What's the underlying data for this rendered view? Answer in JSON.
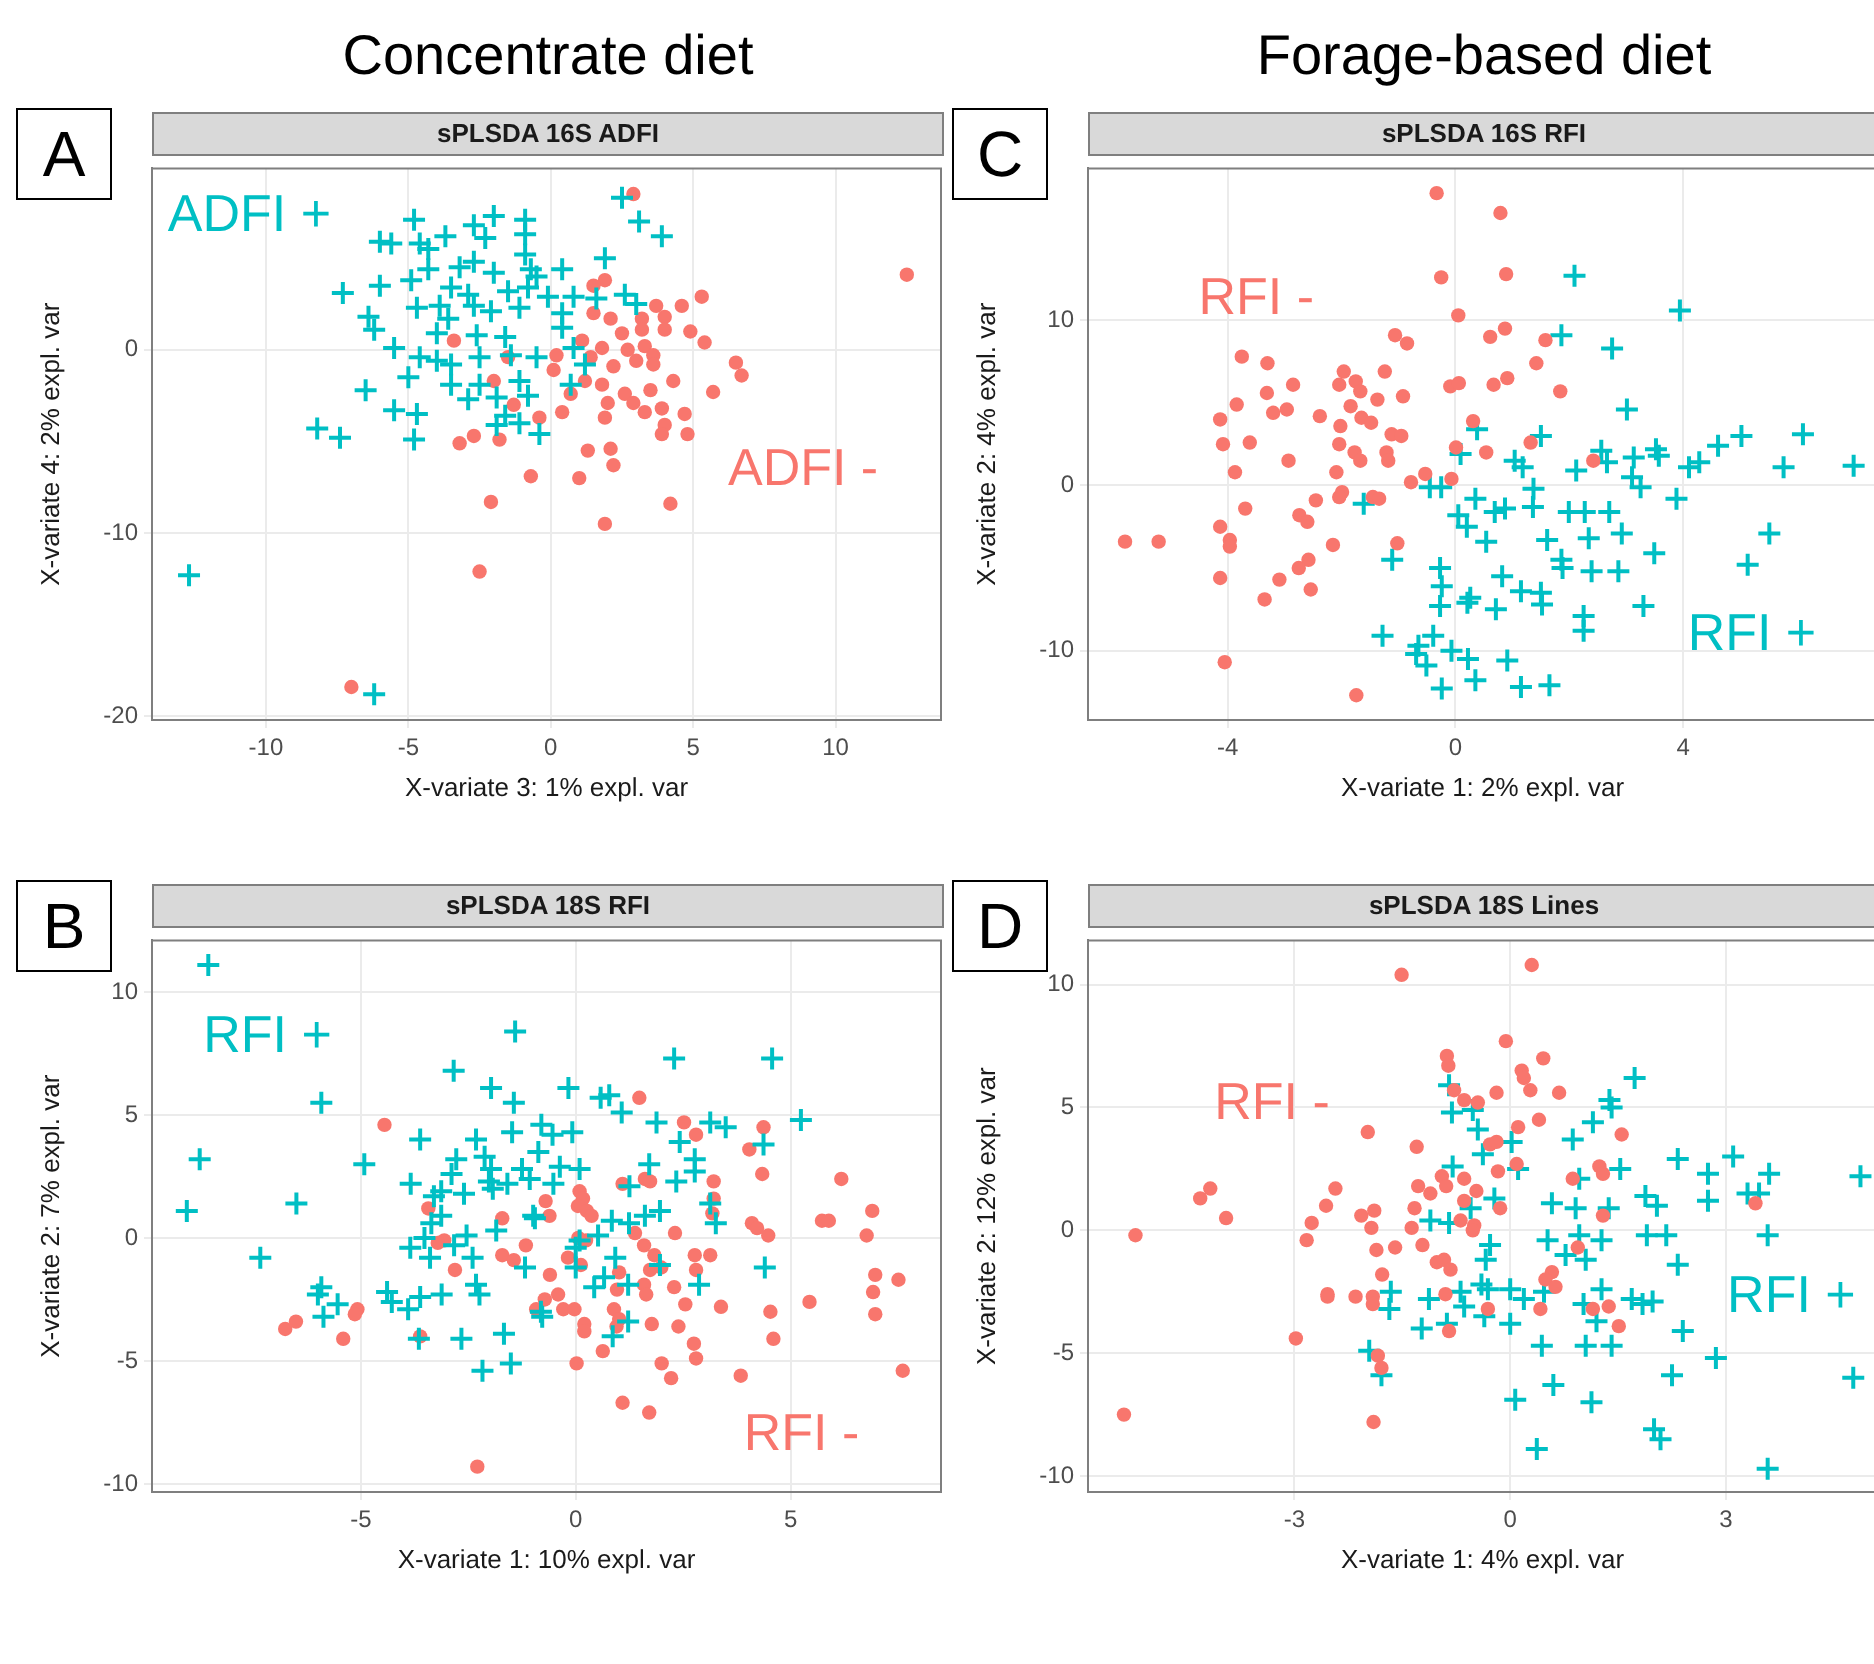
{
  "chart_data": [
    {
      "type": "scatter",
      "subtitle": "Concentrate diet",
      "title": "sPLSDA 16S ADFI",
      "annotations": [
        "A"
      ],
      "xlabel": "X-variate 3: 1% expl. var",
      "ylabel": "X-variate 4: 2% expl. var",
      "xlim": [
        -14,
        13.7
      ],
      "ylim": [
        -20.2,
        9.9
      ],
      "xticks": [
        -10,
        -5,
        0,
        5,
        10
      ],
      "yticks": [
        -20,
        -10,
        0
      ],
      "grid": true,
      "series": [
        {
          "name": "ADFI +",
          "color": "#00bfc4",
          "marker": "cross",
          "x": [
            2.5,
            3.1,
            3.9,
            -4.8,
            -2.7,
            -2.0,
            -0.9,
            -0.9,
            -6.0,
            -5.6,
            -4.6,
            -4.3,
            -3.7,
            -2.3,
            -0.9,
            1.9,
            -4.3,
            -3.2,
            -2.7,
            -2.0,
            -0.7,
            -0.5,
            0.4,
            -4.9,
            -6.0,
            -7.3,
            -3.5,
            -2.9,
            -1.5,
            -0.8,
            -0.1,
            0.8,
            1.6,
            2.6,
            3.0,
            -4.7,
            -3.9,
            -2.7,
            -2.1,
            -1.1,
            0.4,
            -6.4,
            -6.2,
            -3.6,
            -4.0,
            -2.6,
            -1.6,
            0.4,
            -5.5,
            -4.6,
            -4.0,
            -3.5,
            -2.5,
            -1.4,
            -0.5,
            0.8,
            1.2,
            -5.0,
            -3.5,
            -2.5,
            -1.1,
            0.7,
            -6.5,
            -2.9,
            -1.9,
            -0.8,
            -5.5,
            -4.7,
            -1.6,
            -1.9,
            -1.1,
            -0.4,
            -8.2,
            -7.4,
            -4.8,
            -12.7,
            -6.2
          ],
          "values": [
            8.3,
            7.0,
            6.2,
            7.1,
            6.8,
            7.3,
            7.1,
            6.3,
            5.9,
            5.8,
            5.8,
            5.5,
            6.2,
            6.1,
            5.2,
            5.0,
            4.4,
            4.5,
            4.8,
            4.2,
            4.4,
            4.0,
            4.4,
            3.8,
            3.5,
            3.1,
            3.4,
            3.0,
            3.2,
            3.4,
            2.9,
            2.9,
            2.8,
            3.0,
            2.5,
            2.3,
            2.4,
            2.4,
            2.1,
            2.3,
            2.0,
            1.8,
            1.1,
            1.7,
            0.9,
            0.8,
            0.7,
            1.2,
            0.1,
            -0.4,
            -0.6,
            -0.8,
            -0.4,
            -0.3,
            -0.4,
            0.1,
            -0.8,
            -1.5,
            -1.9,
            -1.9,
            -1.7,
            -1.9,
            -2.2,
            -2.7,
            -2.6,
            -2.5,
            -3.3,
            -3.5,
            -3.6,
            -4.1,
            -4.0,
            -4.6,
            -4.3,
            -4.8,
            -4.9,
            -12.3,
            -18.8
          ]
        },
        {
          "name": "ADFI -",
          "color": "#f8766d",
          "marker": "circle",
          "x": [
            2.9,
            12.5,
            1.9,
            1.5,
            5.3,
            3.7,
            4.6,
            2.1,
            3.2,
            4.0,
            1.5,
            2.5,
            3.2,
            4.0,
            4.9,
            5.4,
            -3.4,
            1.1,
            1.8,
            2.7,
            3.3,
            3.6,
            3.0,
            2.2,
            1.4,
            0.2,
            -1.5,
            6.5,
            6.7,
            3.6,
            1.8,
            1.2,
            0.1,
            0.7,
            2.6,
            3.5,
            4.3,
            5.7,
            2.0,
            2.9,
            3.3,
            3.9,
            4.7,
            -2.0,
            -1.3,
            -0.4,
            0.4,
            1.9,
            4.0,
            4.8,
            3.9,
            -3.2,
            -2.7,
            -1.8,
            1.3,
            2.1,
            2.2,
            -0.7,
            1.0,
            -2.1,
            4.2,
            1.9,
            -2.5,
            -7.0
          ],
          "values": [
            8.5,
            4.1,
            3.8,
            3.5,
            2.9,
            2.4,
            2.4,
            1.7,
            1.7,
            1.8,
            2.0,
            0.9,
            1.1,
            1.1,
            1.0,
            0.4,
            0.5,
            0.5,
            0.1,
            0.0,
            0.2,
            -0.3,
            -0.6,
            -0.9,
            -0.4,
            -0.3,
            -0.4,
            -0.7,
            -1.4,
            -0.8,
            -1.9,
            -1.7,
            -1.1,
            -2.4,
            -2.4,
            -2.2,
            -1.7,
            -2.3,
            -2.9,
            -2.9,
            -3.4,
            -3.2,
            -3.5,
            -1.7,
            -3.0,
            -3.7,
            -3.4,
            -3.7,
            -4.1,
            -4.6,
            -4.6,
            -5.1,
            -4.7,
            -4.9,
            -5.5,
            -5.4,
            -6.3,
            -6.9,
            -7.0,
            -8.3,
            -8.4,
            -9.5,
            -12.1,
            -18.4
          ]
        }
      ]
    },
    {
      "type": "scatter",
      "subtitle": "Forage-based diet",
      "title": "sPLSDA 16S RFI",
      "annotations": [
        "C"
      ],
      "xlabel": "X-variate 1: 2% expl. var",
      "ylabel": "X-variate 2: 4% expl. var",
      "xlim": [
        -6.45,
        7.4
      ],
      "ylim": [
        -14.2,
        19.2
      ],
      "xticks": [
        -4,
        0,
        4
      ],
      "yticks": [
        -10,
        0,
        10
      ],
      "grid": true,
      "series": [
        {
          "name": "RFI -",
          "color": "#f8766d",
          "marker": "circle",
          "x": [
            -0.33,
            0.79,
            -0.25,
            0.89,
            0.05,
            -1.06,
            -0.85,
            0.61,
            0.87,
            1.58,
            1.42,
            -3.75,
            -3.3,
            -1.96,
            -1.24,
            -2.85,
            -2.04,
            -1.75,
            -1.67,
            -3.31,
            -0.09,
            0.06,
            0.67,
            0.91,
            1.84,
            -3.84,
            -2.96,
            -3.2,
            -1.84,
            -1.37,
            -0.92,
            -4.13,
            -2.38,
            -1.65,
            -1.48,
            -2.02,
            0.31,
            -4.08,
            -3.61,
            -2.04,
            -1.12,
            -0.95,
            1.32,
            0.01,
            0.54,
            -1.77,
            -1.21,
            2.42,
            -2.93,
            -1.67,
            -1.18,
            -3.87,
            -2.09,
            -0.53,
            -0.78,
            -0.07,
            -1.99,
            -2.04,
            -1.45,
            -1.34,
            -2.45,
            -3.69,
            -2.74,
            -2.6,
            -4.13,
            -5.8,
            -5.21,
            -3.96,
            -3.96,
            -2.15,
            -1.02,
            -2.58,
            -2.75,
            -3.09,
            -4.13,
            -2.54,
            -3.35,
            -4.05,
            -1.74
          ],
          "values": [
            17.7,
            16.5,
            12.6,
            12.8,
            10.3,
            9.1,
            8.6,
            9.0,
            9.5,
            8.8,
            7.4,
            7.8,
            7.4,
            6.9,
            6.9,
            6.1,
            6.1,
            6.3,
            5.7,
            5.6,
            6.0,
            6.2,
            6.1,
            6.5,
            5.7,
            4.9,
            4.6,
            4.4,
            4.8,
            5.2,
            5.4,
            4.0,
            4.2,
            4.1,
            3.8,
            3.6,
            3.9,
            2.5,
            2.6,
            2.5,
            3.1,
            3.0,
            2.6,
            2.3,
            2.0,
            2.0,
            2.0,
            1.5,
            1.5,
            1.5,
            1.5,
            0.8,
            0.8,
            0.7,
            0.2,
            0.4,
            -0.4,
            -0.7,
            -0.7,
            -0.8,
            -0.9,
            -1.4,
            -1.8,
            -2.2,
            -2.5,
            -3.4,
            -3.4,
            -3.3,
            -3.7,
            -3.6,
            -3.5,
            -4.5,
            -5.0,
            -5.7,
            -5.6,
            -6.3,
            -6.9,
            -10.7,
            -12.7
          ]
        },
        {
          "name": "RFI +",
          "color": "#00bfc4",
          "marker": "cross",
          "x": [
            2.09,
            3.94,
            1.86,
            2.75,
            3.01,
            0.38,
            1.5,
            5.02,
            6.1,
            4.61,
            2.56,
            3.52,
            3.57,
            3.13,
            0.09,
            1.04,
            2.66,
            4.28,
            4.1,
            5.76,
            6.99,
            1.18,
            2.12,
            3.1,
            3.25,
            -0.45,
            -0.25,
            1.37,
            0.35,
            1.36,
            -1.61,
            3.88,
            0.05,
            0.69,
            0.87,
            1.99,
            2.27,
            2.7,
            0.2,
            0.54,
            1.61,
            2.34,
            2.92,
            5.51,
            -1.11,
            3.49,
            5.13,
            -0.27,
            1.86,
            1.88,
            2.39,
            2.86,
            0.82,
            -0.24,
            1.15,
            1.5,
            1.52,
            -0.27,
            0.26,
            0.21,
            0.71,
            3.3,
            2.25,
            2.25,
            -1.28,
            -0.39,
            -0.65,
            -0.69,
            -0.51,
            -0.07,
            0.22,
            0.91,
            0.35,
            -0.24,
            1.15,
            1.65
          ],
          "values": [
            12.7,
            10.6,
            9.1,
            8.3,
            4.6,
            3.4,
            3.0,
            3.0,
            3.1,
            2.4,
            2.1,
            2.2,
            1.8,
            1.7,
            1.9,
            1.5,
            1.4,
            1.4,
            1.1,
            1.1,
            1.2,
            1.1,
            0.9,
            0.5,
            -0.1,
            -0.1,
            -0.1,
            -0.2,
            -0.8,
            -1.3,
            -1.1,
            -0.8,
            -1.8,
            -1.6,
            -1.4,
            -1.6,
            -1.6,
            -1.6,
            -2.5,
            -3.4,
            -3.3,
            -3.2,
            -2.9,
            -2.9,
            -4.5,
            -4.1,
            -4.8,
            -5.0,
            -4.5,
            -5.0,
            -5.2,
            -5.2,
            -5.5,
            -6.1,
            -6.4,
            -6.5,
            -7.2,
            -7.3,
            -6.8,
            -7.1,
            -7.5,
            -7.3,
            -7.9,
            -8.8,
            -9.1,
            -9.1,
            -9.7,
            -10.2,
            -10.9,
            -10.0,
            -10.5,
            -10.6,
            -11.8,
            -12.3,
            -12.2,
            -12.1
          ]
        }
      ]
    },
    {
      "type": "scatter",
      "title": "sPLSDA 18S RFI",
      "annotations": [
        "B"
      ],
      "xlabel": "X-variate 1: 10% expl. var",
      "ylabel": "X-variate 2: 7% expl. var",
      "xlim": [
        -9.86,
        8.5
      ],
      "ylim": [
        -10.33,
        12.1
      ],
      "xticks": [
        -5,
        0,
        5
      ],
      "yticks": [
        -10,
        -5,
        0,
        5,
        10
      ],
      "grid": true,
      "series": [
        {
          "name": "RFI +",
          "color": "#00bfc4",
          "marker": "cross",
          "x": [
            -8.55,
            -1.41,
            2.29,
            4.57,
            -2.84,
            -1.97,
            -0.17,
            0.58,
            0.78,
            -5.92,
            -1.44,
            1.07,
            1.88,
            3.13,
            3.49,
            5.24,
            -0.8,
            -1.48,
            -0.54,
            -0.08,
            -2.32,
            -3.62,
            2.42,
            4.37,
            -8.75,
            -2.12,
            -0.87,
            -2.78,
            2.77,
            -4.92,
            1.71,
            -1.97,
            -1.25,
            -0.37,
            0.09,
            2.77,
            -2.89,
            -2.02,
            -1.07,
            2.34,
            -3.84,
            -1.59,
            -0.52,
            1.25,
            -3.13,
            -3.3,
            -2.6,
            -1.93,
            3.13,
            -6.5,
            -9.05,
            1.96,
            -3.13,
            -0.99,
            -0.95,
            1.61,
            -3.36,
            0.84,
            1.24,
            3.26,
            -1.85,
            -2.54,
            -3.52,
            0.09,
            0.52,
            -3.85,
            -2.83,
            0.0,
            -7.34,
            -3.39,
            -2.4,
            0.92,
            -1.18,
            0.0,
            1.96,
            4.4,
            0.66,
            2.87,
            -5.92,
            0.43,
            1.22,
            -2.32,
            -4.39,
            -2.24,
            -6.0,
            -3.12,
            -3.62,
            -4.28,
            -5.54,
            -3.9,
            -5.87,
            -0.81,
            -0.78,
            1.22,
            -1.67,
            -3.65,
            -2.66,
            0.86,
            -1.51,
            -2.17
          ],
          "values": [
            11.1,
            8.4,
            7.3,
            7.3,
            6.8,
            6.1,
            6.1,
            5.7,
            5.8,
            5.5,
            5.5,
            5.1,
            4.7,
            4.7,
            4.5,
            4.8,
            4.6,
            4.3,
            4.2,
            4.3,
            4.0,
            4.0,
            3.9,
            3.8,
            3.2,
            3.3,
            3.5,
            3.2,
            3.2,
            3.0,
            3.0,
            2.8,
            2.8,
            2.9,
            2.8,
            2.7,
            2.6,
            2.3,
            2.4,
            2.3,
            2.2,
            2.2,
            2.2,
            2.1,
            1.9,
            1.7,
            1.8,
            2.0,
            1.4,
            1.4,
            1.1,
            1.1,
            0.9,
            0.9,
            0.8,
            0.9,
            0.6,
            0.7,
            0.6,
            0.6,
            0.3,
            0.1,
            0.0,
            -0.1,
            0.1,
            -0.4,
            -0.3,
            -0.4,
            -0.8,
            -0.8,
            -0.8,
            -0.8,
            -1.2,
            -1.2,
            -1.1,
            -1.2,
            -1.6,
            -1.9,
            -2.0,
            -2.0,
            -1.9,
            -1.9,
            -2.2,
            -2.3,
            -2.3,
            -2.3,
            -2.4,
            -2.6,
            -2.7,
            -2.9,
            -3.2,
            -3.0,
            -3.2,
            -3.4,
            -3.9,
            -4.1,
            -4.1,
            -4.0,
            -5.1,
            -5.4
          ]
        },
        {
          "name": "RFI -",
          "color": "#f8766d",
          "marker": "circle",
          "x": [
            1.48,
            -4.45,
            2.52,
            2.8,
            4.37,
            4.04,
            4.34,
            6.18,
            1.61,
            1.73,
            1.09,
            3.21,
            3.21,
            0.09,
            0.17,
            -0.7,
            -3.43,
            6.9,
            0.05,
            0.26,
            0.37,
            -0.61,
            -1.71,
            5.73,
            5.89,
            4.1,
            4.22,
            3.18,
            1.38,
            2.31,
            4.48,
            6.77,
            0.06,
            0.24,
            -3.06,
            -3.21,
            -1.16,
            1.59,
            1.83,
            -1.71,
            -1.44,
            -0.18,
            3.13,
            2.77,
            0.12,
            1.73,
            1.99,
            2.8,
            1.01,
            -2.81,
            -0.6,
            6.97,
            7.51,
            1.59,
            2.29,
            0.96,
            6.92,
            1.64,
            -0.41,
            -0.72,
            5.44,
            2.55,
            3.38,
            -5.08,
            -5.14,
            -0.92,
            -0.29,
            -0.03,
            0.89,
            4.53,
            6.97,
            0.2,
            0.2,
            0.95,
            1.77,
            1.01,
            -6.51,
            -6.76,
            2.39,
            -3.62,
            -5.41,
            4.6,
            2.75,
            0.63,
            2.8,
            0.02,
            2.0,
            2.22,
            3.84,
            7.61,
            1.09,
            1.71,
            -2.29
          ],
          "values": [
            5.7,
            4.6,
            4.7,
            4.2,
            4.5,
            3.6,
            2.6,
            2.4,
            2.4,
            2.3,
            2.2,
            2.3,
            1.6,
            1.9,
            1.6,
            1.5,
            1.2,
            1.1,
            1.3,
            1.1,
            0.9,
            0.9,
            0.8,
            0.7,
            0.7,
            0.6,
            0.4,
            1.0,
            0.2,
            0.2,
            0.1,
            0.1,
            0.0,
            -0.1,
            -0.1,
            -0.2,
            -0.3,
            -0.3,
            -0.7,
            -0.7,
            -0.9,
            -0.8,
            -0.7,
            -0.7,
            -1.1,
            -1.3,
            -1.2,
            -1.3,
            -1.4,
            -1.3,
            -1.5,
            -1.5,
            -1.7,
            -1.9,
            -2.0,
            -2.1,
            -2.2,
            -2.3,
            -2.3,
            -2.5,
            -2.6,
            -2.7,
            -2.8,
            -2.9,
            -3.1,
            -2.9,
            -2.9,
            -2.9,
            -2.9,
            -3.0,
            -3.1,
            -3.5,
            -3.8,
            -3.6,
            -3.5,
            -3.3,
            -3.4,
            -3.7,
            -3.6,
            -4.0,
            -4.1,
            -4.1,
            -4.3,
            -4.6,
            -4.9,
            -5.1,
            -5.1,
            -5.7,
            -5.6,
            -5.4,
            -6.7,
            -7.1,
            -9.3
          ]
        }
      ]
    },
    {
      "type": "scatter",
      "title": "sPLSDA 18S Lines",
      "annotations": [
        "D"
      ],
      "xlabel": "X-variate 1: 4% expl. var",
      "ylabel": "X-variate 2: 12% expl. var",
      "xlim": [
        -5.87,
        5.1
      ],
      "ylim": [
        -10.65,
        11.8
      ],
      "xticks": [
        -3,
        0,
        3
      ],
      "yticks": [
        -10,
        -5,
        0,
        5,
        10
      ],
      "grid": true,
      "series": [
        {
          "name": "RFI -",
          "color": "#f8766d",
          "marker": "circle",
          "x": [
            -1.51,
            0.3,
            -0.06,
            -0.88,
            0.46,
            -0.86,
            0.16,
            0.19,
            0.68,
            0.28,
            -0.19,
            -0.78,
            -0.64,
            -0.45,
            0.4,
            0.11,
            -1.98,
            1.55,
            -0.28,
            -1.3,
            -0.19,
            0.09,
            1.24,
            1.29,
            -0.17,
            -0.95,
            -0.64,
            0.87,
            -4.17,
            -1.28,
            -0.89,
            -2.43,
            -4.31,
            -1.11,
            -0.47,
            -2.56,
            -1.33,
            -0.64,
            -0.14,
            3.41,
            -3.95,
            -2.07,
            -1.89,
            1.29,
            -2.76,
            -1.93,
            -1.37,
            -0.69,
            -0.5,
            -5.21,
            -0.52,
            -2.83,
            -1.6,
            -1.22,
            -1.86,
            0.94,
            -1.02,
            -0.92,
            -0.83,
            -1.78,
            0.58,
            0.49,
            0.63,
            -2.54,
            -2.54,
            -2.15,
            -1.91,
            -1.91,
            -0.9,
            -0.31,
            0.42,
            1.15,
            1.37,
            1.51,
            -0.85,
            -2.98,
            -1.84,
            -1.79,
            -5.37,
            -1.9
          ],
          "values": [
            10.4,
            10.8,
            7.7,
            7.1,
            7.0,
            6.7,
            6.5,
            6.2,
            5.6,
            5.7,
            5.6,
            5.7,
            5.3,
            5.2,
            4.5,
            4.2,
            4.0,
            3.9,
            3.5,
            3.4,
            3.6,
            2.7,
            2.6,
            2.3,
            2.4,
            2.2,
            2.1,
            2.1,
            1.7,
            1.8,
            1.8,
            1.7,
            1.3,
            1.5,
            1.6,
            1.0,
            0.9,
            1.2,
            0.9,
            1.1,
            0.5,
            0.6,
            0.8,
            0.6,
            0.3,
            0.1,
            0.1,
            0.4,
            0.2,
            -0.2,
            0.0,
            -0.4,
            -0.7,
            -0.6,
            -0.8,
            -0.7,
            -1.3,
            -1.2,
            -1.6,
            -1.8,
            -1.7,
            -2.0,
            -2.3,
            -2.6,
            -2.7,
            -2.7,
            -2.7,
            -3.0,
            -2.6,
            -3.2,
            -3.2,
            -3.2,
            -3.1,
            -3.9,
            -4.1,
            -4.4,
            -5.1,
            -5.6,
            -7.5,
            -7.8
          ]
        },
        {
          "name": "RFI +",
          "color": "#00bfc4",
          "marker": "cross",
          "x": [
            1.73,
            -0.85,
            1.38,
            1.41,
            -0.81,
            -0.52,
            1.15,
            -0.45,
            0.87,
            0.02,
            -0.38,
            2.33,
            3.1,
            -0.8,
            0.11,
            1.53,
            2.75,
            3.6,
            4.87,
            0.96,
            1.88,
            2.75,
            3.3,
            3.46,
            -0.22,
            2.04,
            0.58,
            0.91,
            1.37,
            -0.55,
            -1.11,
            -0.85,
            1.9,
            2.17,
            3.58,
            0.52,
            0.96,
            1.27,
            -0.28,
            0.77,
            1.05,
            -0.34,
            2.33,
            -1.66,
            -0.69,
            -0.4,
            -0.31,
            0.0,
            0.47,
            1.27,
            1.69,
            1.98,
            1.84,
            -1.13,
            -1.68,
            -0.64,
            0.19,
            1.02,
            -0.36,
            -1.23,
            -0.88,
            0.0,
            1.2,
            2.4,
            0.44,
            1.05,
            1.41,
            -1.96,
            2.86,
            -1.79,
            2.25,
            4.77,
            0.6,
            0.07,
            1.13,
            2.0,
            2.09,
            0.37,
            3.58
          ],
          "values": [
            6.2,
            5.9,
            5.3,
            5.0,
            4.8,
            4.9,
            4.4,
            4.1,
            3.7,
            3.6,
            3.1,
            2.9,
            3.0,
            2.6,
            2.5,
            2.5,
            2.3,
            2.3,
            2.2,
            2.1,
            1.4,
            1.2,
            1.5,
            1.5,
            1.3,
            1.0,
            1.1,
            0.9,
            0.9,
            0.9,
            0.4,
            0.3,
            -0.2,
            -0.2,
            -0.2,
            -0.4,
            -0.2,
            -0.4,
            -0.6,
            -1.0,
            -1.2,
            -1.2,
            -1.4,
            -2.5,
            -2.5,
            -2.2,
            -2.4,
            -2.4,
            -2.5,
            -2.4,
            -2.8,
            -2.9,
            -3.0,
            -2.8,
            -3.2,
            -3.1,
            -2.8,
            -3.0,
            -3.5,
            -4.0,
            -3.8,
            -3.8,
            -3.7,
            -4.1,
            -4.7,
            -4.7,
            -4.7,
            -4.9,
            -5.2,
            -5.9,
            -5.9,
            -6.0,
            -6.3,
            -6.9,
            -7.0,
            -8.1,
            -8.5,
            -8.9,
            -9.7
          ]
        }
      ]
    }
  ]
}
